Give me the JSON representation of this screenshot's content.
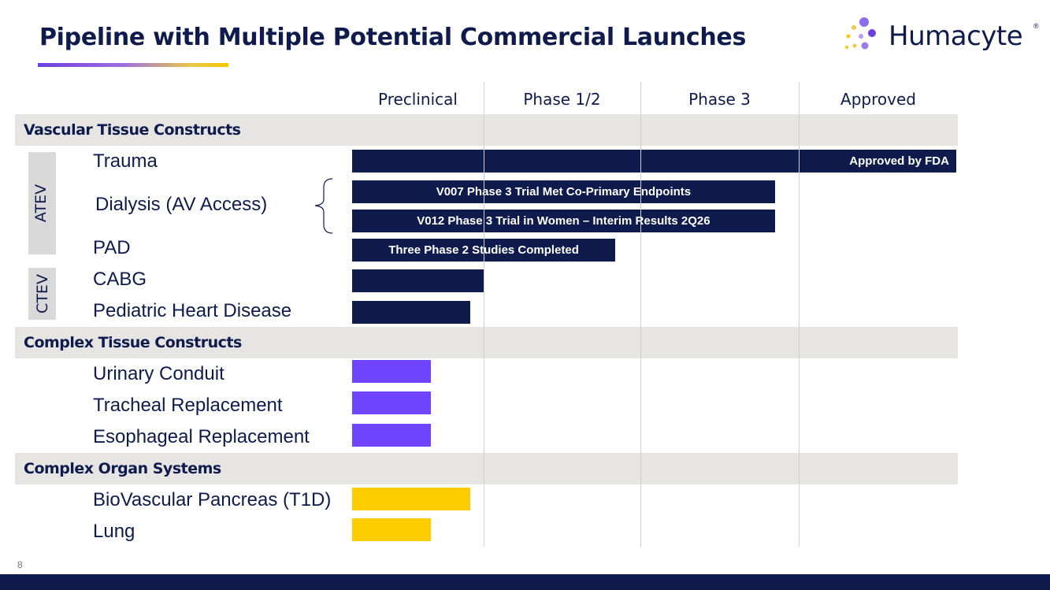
{
  "title": "Pipeline with Multiple Potential Commercial Launches",
  "logo": {
    "text": "Humacyte",
    "reg": "®",
    "dot_colors": [
      "#8e6cf0",
      "#6d3fe0",
      "#f2c94c",
      "#b39af2",
      "#f5c800"
    ]
  },
  "page_number": "8",
  "colors": {
    "navy": "#0f1b4c",
    "purple": "#6e44ff",
    "yellow": "#ffcc00",
    "band": "#e7e5e4"
  },
  "chart_data": {
    "type": "bar",
    "orientation": "horizontal",
    "stages": [
      "Preclinical",
      "Phase 1/2",
      "Phase 3",
      "Approved"
    ],
    "value_unit": "stage progress (1 = one full stage column)",
    "groups": [
      {
        "name": "Vascular Tissue Constructs",
        "items": [
          {
            "label": "Trauma",
            "subgroup": "ATEV",
            "progress": 3.99,
            "bar_label": "Approved by FDA",
            "color": "#0f1b4c"
          },
          {
            "label": "Dialysis (AV Access)",
            "subgroup": "ATEV",
            "progress": 2.85,
            "bar_label": "V007 Phase 3 Trial Met Co-Primary Endpoints",
            "color": "#0f1b4c"
          },
          {
            "label": "",
            "subgroup": "ATEV",
            "progress": 2.85,
            "bar_label": "V012 Phase 3 Trial in Women – Interim Results 2Q26",
            "color": "#0f1b4c"
          },
          {
            "label": "PAD",
            "subgroup": "ATEV",
            "progress": 1.84,
            "bar_label": "Three Phase 2 Studies Completed",
            "color": "#0f1b4c"
          },
          {
            "label": "CABG",
            "subgroup": "CTEV",
            "progress": 1.0,
            "bar_label": "",
            "color": "#0f1b4c"
          },
          {
            "label": "Pediatric Heart Disease",
            "subgroup": "CTEV",
            "progress": 0.9,
            "bar_label": "",
            "color": "#0f1b4c"
          }
        ]
      },
      {
        "name": "Complex Tissue Constructs",
        "items": [
          {
            "label": "Urinary Conduit",
            "subgroup": "",
            "progress": 0.6,
            "bar_label": "",
            "color": "#6e44ff"
          },
          {
            "label": "Tracheal Replacement",
            "subgroup": "",
            "progress": 0.6,
            "bar_label": "",
            "color": "#6e44ff"
          },
          {
            "label": "Esophageal Replacement",
            "subgroup": "",
            "progress": 0.6,
            "bar_label": "",
            "color": "#6e44ff"
          }
        ]
      },
      {
        "name": "Complex Organ Systems",
        "items": [
          {
            "label": "BioVascular Pancreas (T1D)",
            "subgroup": "",
            "progress": 0.9,
            "bar_label": "",
            "color": "#ffcc00"
          },
          {
            "label": "Lung",
            "subgroup": "",
            "progress": 0.6,
            "bar_label": "",
            "color": "#ffcc00"
          }
        ]
      }
    ],
    "subgroups": [
      "ATEV",
      "CTEV"
    ],
    "grid": true,
    "legend": "none"
  }
}
